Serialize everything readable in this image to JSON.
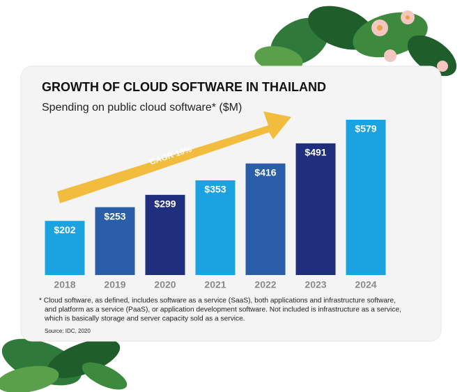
{
  "chart_data": {
    "type": "bar",
    "title": "GROWTH OF CLOUD SOFTWARE IN THAILAND",
    "subtitle": "Spending on public cloud software* ($M)",
    "annotation": "CAGR 19%",
    "categories": [
      "2018",
      "2019",
      "2020",
      "2021",
      "2022",
      "2023",
      "2024"
    ],
    "values": [
      202,
      253,
      299,
      353,
      416,
      491,
      579
    ],
    "value_labels": [
      "$202",
      "$253",
      "$299",
      "$353",
      "$416",
      "$491",
      "$579"
    ],
    "colors": [
      "#1aa3e0",
      "#2a5ea8",
      "#1f2f7e",
      "#1aa3e0",
      "#2a5ea8",
      "#1f2f7e",
      "#1aa3e0"
    ],
    "footnote": [
      "* Cloud software, as defined, includes software as a service (SaaS), both applications and infrastructure software,",
      "and platform as a service (PaaS), or application development software. Not included is infrastructure as a service,",
      "which is basically storage and server capacity sold as a service."
    ],
    "source": "Source: IDC, 2020"
  }
}
